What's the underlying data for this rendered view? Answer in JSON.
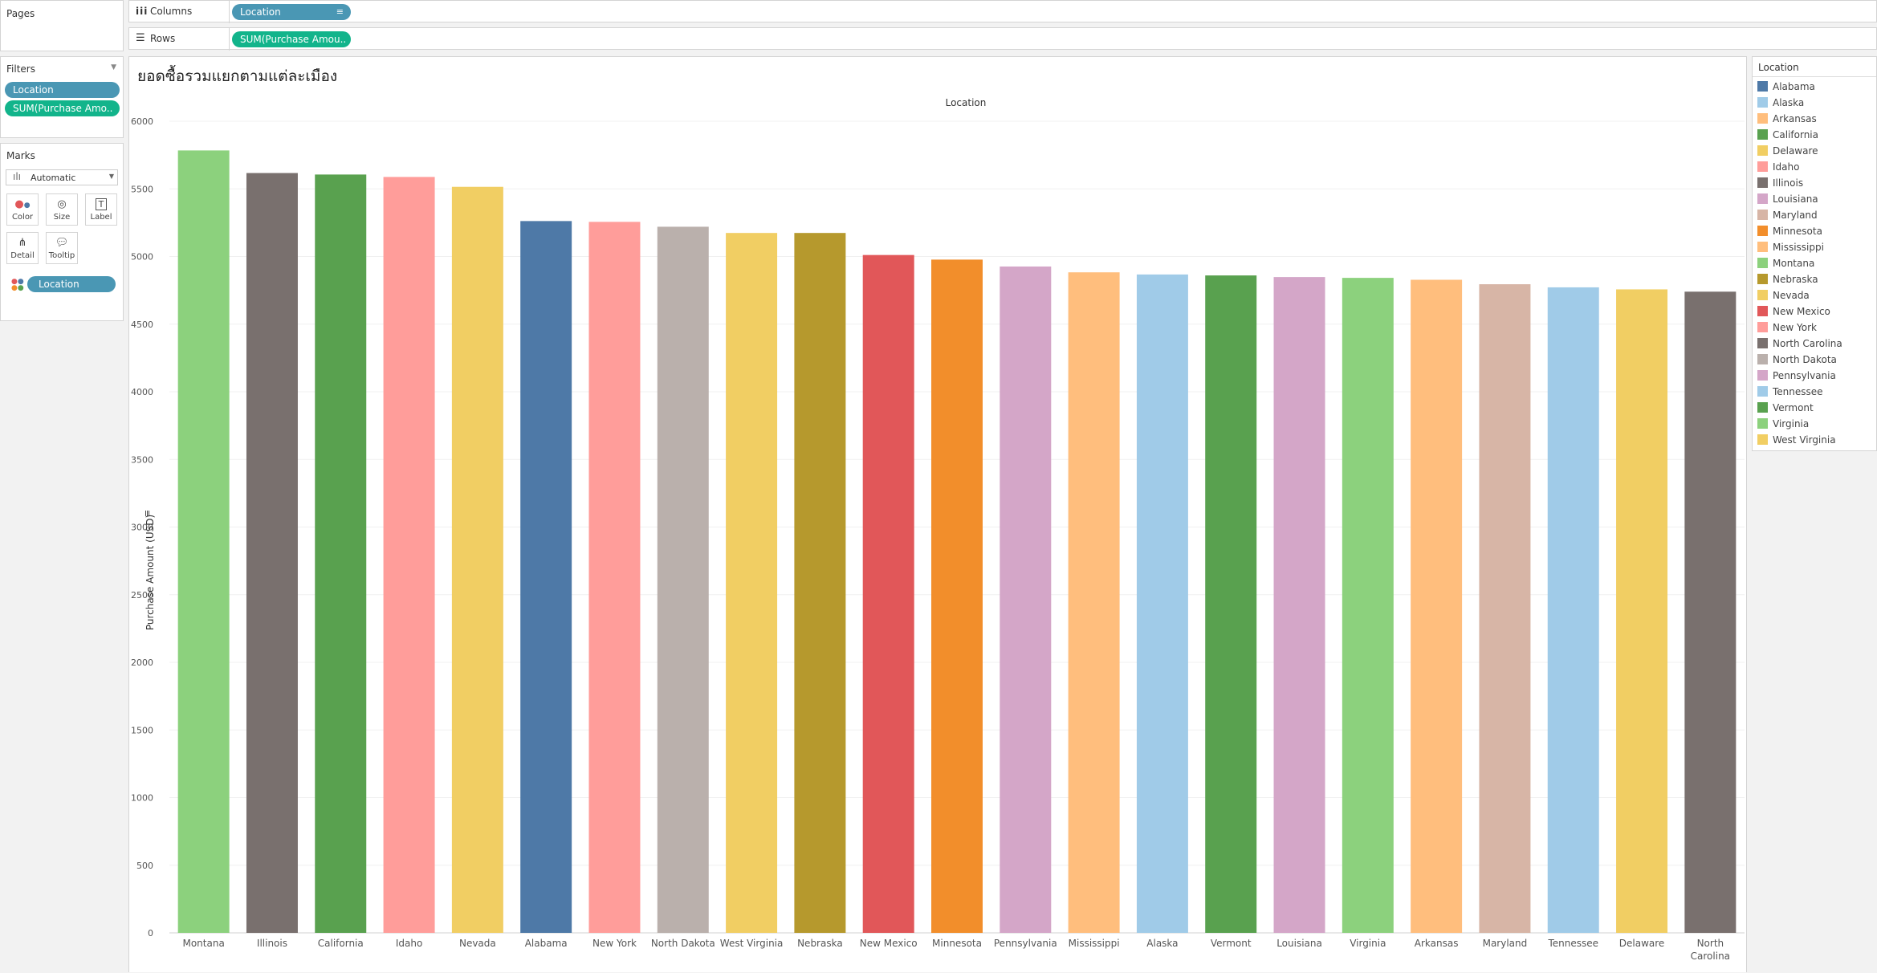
{
  "pages": {
    "title": "Pages"
  },
  "shelves": {
    "columns_label": "Columns",
    "columns_pill": "Location",
    "rows_label": "Rows",
    "rows_pill": "SUM(Purchase Amou.."
  },
  "filters": {
    "title": "Filters",
    "items": [
      "Location",
      "SUM(Purchase Amo.."
    ]
  },
  "marks": {
    "title": "Marks",
    "type": "Automatic",
    "buttons": {
      "color": "Color",
      "size": "Size",
      "label": "Label",
      "detail": "Detail",
      "tooltip": "Tooltip"
    },
    "color_pill": "Location"
  },
  "legend": {
    "title": "Location",
    "items": [
      {
        "name": "Alabama",
        "color": "#4e79a7"
      },
      {
        "name": "Alaska",
        "color": "#a0cbe8"
      },
      {
        "name": "Arkansas",
        "color": "#ffbe7d"
      },
      {
        "name": "California",
        "color": "#59a14f"
      },
      {
        "name": "Delaware",
        "color": "#f1ce63"
      },
      {
        "name": "Idaho",
        "color": "#ff9d9a"
      },
      {
        "name": "Illinois",
        "color": "#79706e"
      },
      {
        "name": "Louisiana",
        "color": "#d4a6c8"
      },
      {
        "name": "Maryland",
        "color": "#d7b5a6"
      },
      {
        "name": "Minnesota",
        "color": "#f28e2b"
      },
      {
        "name": "Mississippi",
        "color": "#ffbe7d"
      },
      {
        "name": "Montana",
        "color": "#8cd17d"
      },
      {
        "name": "Nebraska",
        "color": "#b6992d"
      },
      {
        "name": "Nevada",
        "color": "#f1ce63"
      },
      {
        "name": "New Mexico",
        "color": "#e15759"
      },
      {
        "name": "New York",
        "color": "#ff9d9a"
      },
      {
        "name": "North Carolina",
        "color": "#79706e"
      },
      {
        "name": "North Dakota",
        "color": "#bab0ac"
      },
      {
        "name": "Pennsylvania",
        "color": "#d4a6c8"
      },
      {
        "name": "Tennessee",
        "color": "#a0cbe8"
      },
      {
        "name": "Vermont",
        "color": "#59a14f"
      },
      {
        "name": "Virginia",
        "color": "#8cd17d"
      },
      {
        "name": "West Virginia",
        "color": "#f1ce63"
      }
    ]
  },
  "chart_data": {
    "type": "bar",
    "title": "ยอดซื้อรวมแยกตามแต่ละเมือง",
    "column_header": "Location",
    "ylabel": "Purchase Amount (USD)",
    "ylim": [
      0,
      6000
    ],
    "yticks": [
      0,
      500,
      1000,
      1500,
      2000,
      2500,
      3000,
      3500,
      4000,
      4500,
      5000,
      5500,
      6000
    ],
    "categories": [
      "Montana",
      "Illinois",
      "California",
      "Idaho",
      "Nevada",
      "Alabama",
      "New York",
      "North Dakota",
      "West Virginia",
      "Nebraska",
      "New Mexico",
      "Minnesota",
      "Pennsylvania",
      "Mississippi",
      "Alaska",
      "Vermont",
      "Louisiana",
      "Virginia",
      "Arkansas",
      "Maryland",
      "Tennessee",
      "Delaware",
      "North Carolina"
    ],
    "category_lines": [
      [
        "Montana"
      ],
      [
        "Illinois"
      ],
      [
        "California"
      ],
      [
        "Idaho"
      ],
      [
        "Nevada"
      ],
      [
        "Alabama"
      ],
      [
        "New York"
      ],
      [
        "North Dakota"
      ],
      [
        "West Virginia"
      ],
      [
        "Nebraska"
      ],
      [
        "New Mexico"
      ],
      [
        "Minnesota"
      ],
      [
        "Pennsylvania"
      ],
      [
        "Mississippi"
      ],
      [
        "Alaska"
      ],
      [
        "Vermont"
      ],
      [
        "Louisiana"
      ],
      [
        "Virginia"
      ],
      [
        "Arkansas"
      ],
      [
        "Maryland"
      ],
      [
        "Tennessee"
      ],
      [
        "Delaware"
      ],
      [
        "North",
        "Carolina"
      ]
    ],
    "values": [
      5784,
      5617,
      5606,
      5588,
      5515,
      5262,
      5256,
      5220,
      5174,
      5174,
      5011,
      4977,
      4926,
      4883,
      4867,
      4860,
      4848,
      4842,
      4828,
      4795,
      4772,
      4757,
      4740
    ],
    "colors": [
      "#8cd17d",
      "#79706e",
      "#59a14f",
      "#ff9d9a",
      "#f1ce63",
      "#4e79a7",
      "#ff9d9a",
      "#bab0ac",
      "#f1ce63",
      "#b6992d",
      "#e15759",
      "#f28e2b",
      "#d4a6c8",
      "#ffbe7d",
      "#a0cbe8",
      "#59a14f",
      "#d4a6c8",
      "#8cd17d",
      "#ffbe7d",
      "#d7b5a6",
      "#a0cbe8",
      "#f1ce63",
      "#79706e"
    ],
    "grid": true,
    "legend_position": "right"
  }
}
